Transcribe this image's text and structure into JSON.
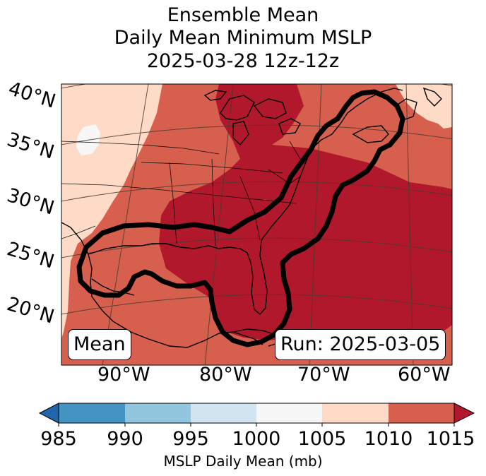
{
  "title": {
    "line1": "Ensemble Mean",
    "line2": "Daily Mean Minimum MSLP",
    "line3": "2025-03-28 12z-12z"
  },
  "map": {
    "lat_labels": [
      "40°N",
      "35°N",
      "30°N",
      "25°N",
      "20°N"
    ],
    "lon_labels": [
      "90°W",
      "80°W",
      "70°W",
      "60°W"
    ],
    "mean_box": "Mean",
    "run_box": "Run: 2025-03-05",
    "fill_colors": {
      "lt_1005": "#f7f7f7",
      "r1005_1010": "#fddbc7",
      "r1010_1015": "#d6604d",
      "gt_1015": "#b2182b"
    }
  },
  "colorbar": {
    "ticks": [
      "985",
      "990",
      "995",
      "1000",
      "1005",
      "1010",
      "1015"
    ],
    "colors": {
      "under": "#2166ac",
      "c985_990": "#4393c3",
      "c990_995": "#92c5de",
      "c995_1000": "#d1e5f0",
      "c1000_1005": "#f7f7f7",
      "c1005_1010": "#fddbc7",
      "c1010_1015": "#d6604d",
      "over": "#b2182b"
    },
    "label": "MSLP Daily Mean (mb)"
  }
}
